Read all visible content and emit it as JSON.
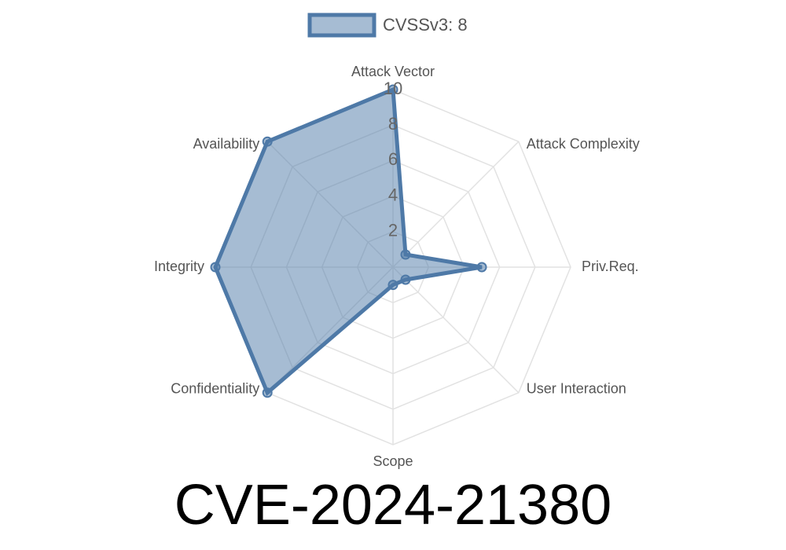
{
  "chart_data": {
    "type": "radar",
    "title": "CVE-2024-21380",
    "categories": [
      "Attack Vector",
      "Attack Complexity",
      "Priv.Req.",
      "User Interaction",
      "Scope",
      "Confidentiality",
      "Integrity",
      "Availability"
    ],
    "series": [
      {
        "name": "CVSSv3: 8",
        "color": "#4e79a7",
        "values": [
          10,
          1,
          5,
          1,
          1,
          10,
          10,
          10
        ]
      }
    ],
    "rlim": [
      0,
      10
    ],
    "rticks": [
      2,
      4,
      6,
      8,
      10
    ],
    "grid": true,
    "legend": "top"
  }
}
